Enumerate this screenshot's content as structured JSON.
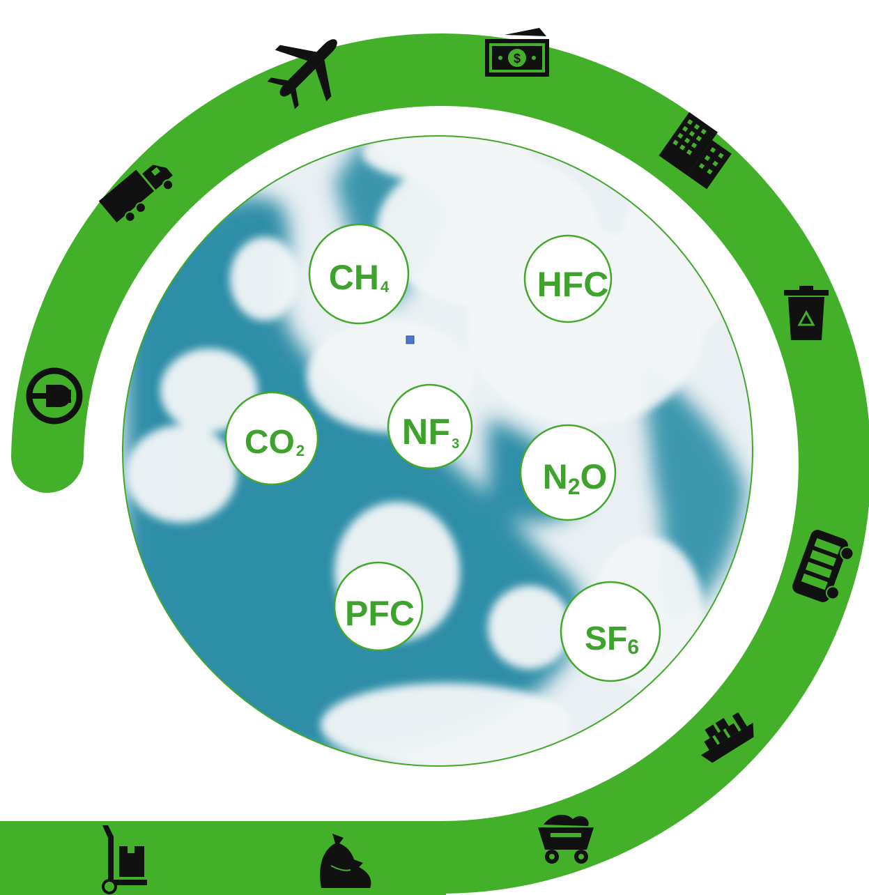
{
  "colors": {
    "ring": "#43b02a",
    "gas_text": "#3da32c",
    "icon": "#111111",
    "sky_blue": "#2f8ea8",
    "cloud": "#f3f6f7"
  },
  "gases": [
    {
      "label": "CH",
      "sub": "4"
    },
    {
      "label": "HFC",
      "sub": ""
    },
    {
      "label": "CO",
      "sub": "2"
    },
    {
      "label": "NF",
      "sub": "3"
    },
    {
      "label": "N",
      "sub": "2",
      "suffix": "O"
    },
    {
      "label": "PFC",
      "sub": ""
    },
    {
      "label": "SF",
      "sub": "6"
    }
  ],
  "icons": [
    "power-plug-icon",
    "truck-icon",
    "airplane-icon",
    "money-icon",
    "office-building-icon",
    "recycle-bin-icon",
    "bus-icon",
    "cargo-ship-icon",
    "coal-cart-icon",
    "garbage-bags-icon",
    "hand-truck-icon"
  ]
}
